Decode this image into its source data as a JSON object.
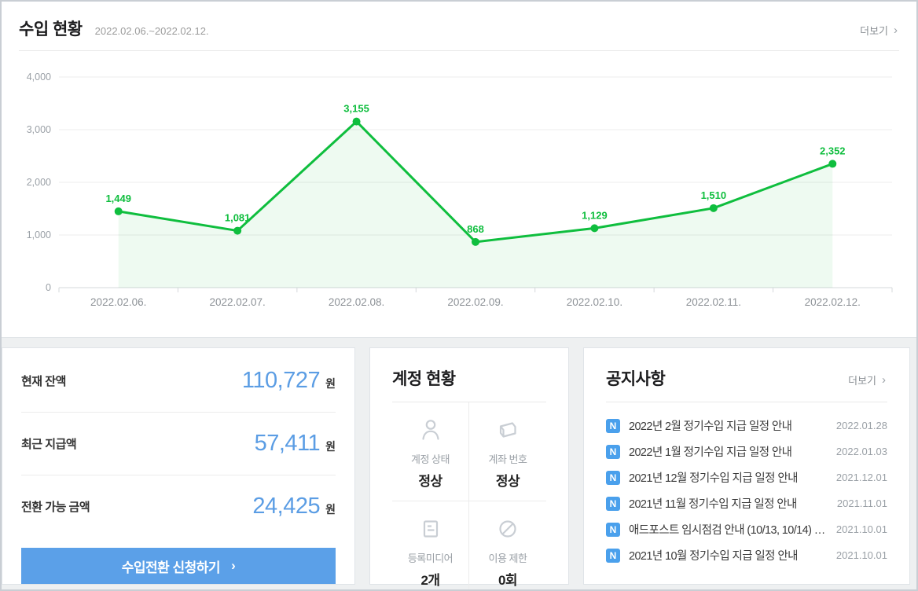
{
  "income_panel": {
    "title": "수입 현황",
    "date_range": "2022.02.06.~2022.02.12.",
    "more_label": "더보기",
    "more_chevron": "›"
  },
  "chart_data": {
    "type": "line",
    "title": "수입 현황 일별 추이",
    "x": [
      "2022.02.06.",
      "2022.02.07.",
      "2022.02.08.",
      "2022.02.09.",
      "2022.02.10.",
      "2022.02.11.",
      "2022.02.12."
    ],
    "series": [
      {
        "name": "수입",
        "values": [
          1449,
          1081,
          3155,
          868,
          1129,
          1510,
          2352
        ]
      }
    ],
    "value_labels": [
      "1,449",
      "1,081",
      "3,155",
      "868",
      "1,129",
      "1,510",
      "2,352"
    ],
    "ylim": [
      0,
      4000
    ],
    "yticks": [
      0,
      1000,
      2000,
      3000,
      4000
    ],
    "ytick_labels": [
      "0",
      "1,000",
      "2,000",
      "3,000",
      "4,000"
    ],
    "grid": true,
    "legend_position": "none",
    "line_color": "#0fbe3e",
    "fill_color": "rgba(15,190,62,0.07)"
  },
  "balance_panel": {
    "rows": [
      {
        "label": "현재 잔액",
        "value": "110,727",
        "unit": "원"
      },
      {
        "label": "최근 지급액",
        "value": "57,411",
        "unit": "원"
      },
      {
        "label": "전환 가능 금액",
        "value": "24,425",
        "unit": "원"
      }
    ],
    "button_label": "수입전환 신청하기",
    "button_chevron": "›"
  },
  "account_panel": {
    "title": "계정 현황",
    "cells": [
      {
        "icon": "user-icon",
        "label": "계정 상태",
        "value": "정상"
      },
      {
        "icon": "bankbook-icon",
        "label": "계좌 번호",
        "value": "정상"
      },
      {
        "icon": "media-doc-icon",
        "label": "등록미디어",
        "value": "2개"
      },
      {
        "icon": "block-icon",
        "label": "이용 제한",
        "value": "0회"
      }
    ]
  },
  "notice_panel": {
    "title": "공지사항",
    "more_label": "더보기",
    "more_chevron": "›",
    "badge": "N",
    "items": [
      {
        "title": "2022년 2월 정기수입 지급 일정 안내",
        "date": "2022.01.28"
      },
      {
        "title": "2022년 1월 정기수입 지급 일정 안내",
        "date": "2022.01.03"
      },
      {
        "title": "2021년 12월 정기수입 지급 일정 안내",
        "date": "2021.12.01"
      },
      {
        "title": "2021년 11월 정기수입 지급 일정 안내",
        "date": "2021.11.01"
      },
      {
        "title": "애드포스트 임시점검 안내 (10/13, 10/14) …",
        "date": "2021.10.01"
      },
      {
        "title": "2021년 10월 정기수입 지급 일정 안내",
        "date": "2021.10.01"
      }
    ]
  },
  "colors": {
    "accent_green": "#0fbe3e",
    "accent_blue": "#5b9de4",
    "button_blue": "#5ba0e8",
    "badge_blue": "#4aa0ec"
  }
}
